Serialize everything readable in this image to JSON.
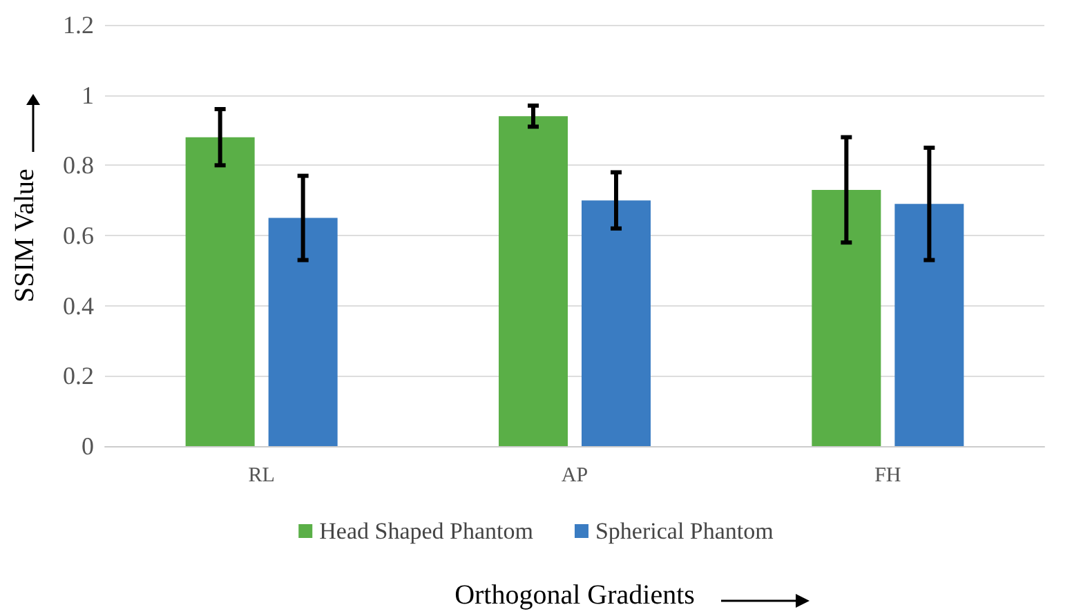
{
  "chart_data": {
    "type": "bar",
    "xlabel": "Orthogonal Gradients",
    "ylabel": "SSIM Value",
    "categories": [
      "RL",
      "AP",
      "FH"
    ],
    "series": [
      {
        "name": "Head Shaped Phantom",
        "color": "#5aaf47",
        "values": [
          0.88,
          0.94,
          0.73
        ],
        "errors": [
          [
            0.8,
            0.96
          ],
          [
            0.91,
            0.97
          ],
          [
            0.58,
            0.88
          ]
        ]
      },
      {
        "name": "Spherical Phantom",
        "color": "#3a7cc2",
        "values": [
          0.65,
          0.7,
          0.69
        ],
        "errors": [
          [
            0.53,
            0.77
          ],
          [
            0.62,
            0.78
          ],
          [
            0.53,
            0.85
          ]
        ]
      }
    ],
    "ylim": [
      0,
      1.2
    ],
    "yticks": [
      0,
      0.2,
      0.4,
      0.6,
      0.8,
      1,
      1.2
    ],
    "grid": "y",
    "legend": "bottom"
  }
}
